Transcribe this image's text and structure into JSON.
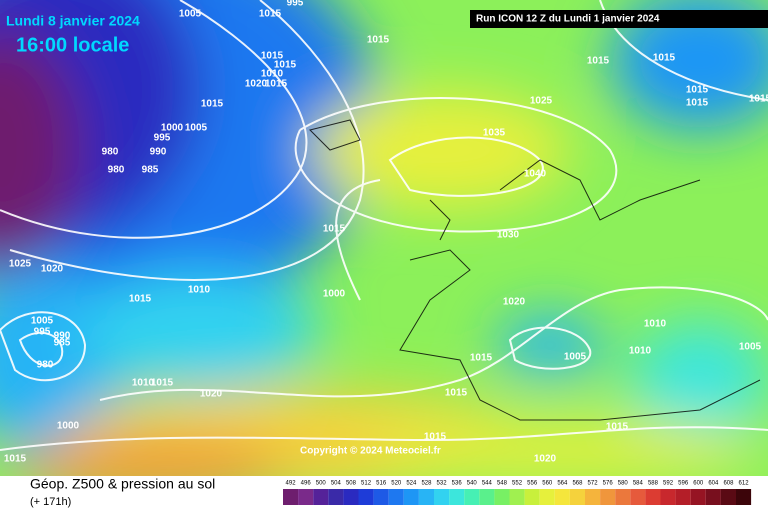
{
  "header": {
    "date": "Lundi 8 janvier 2024",
    "time": "16:00 locale",
    "run": "Run ICON 12 Z du Lundi 1 janvier 2024"
  },
  "isobar_labels": [
    1005,
    1015,
    995,
    1015,
    1015,
    1015,
    1010,
    1020,
    1015,
    1015,
    1000,
    1005,
    995,
    990,
    980,
    980,
    985,
    1015,
    1015,
    1025,
    1035,
    1040,
    1030,
    1015,
    1015,
    1015,
    1015,
    1025,
    1020,
    1015,
    1010,
    1000,
    1020,
    1005,
    995,
    990,
    985,
    980,
    1015,
    1005,
    1010,
    1010,
    1005,
    1010,
    1015,
    1020,
    1015,
    1000,
    1015,
    1015,
    1015,
    1020
  ],
  "copyright": "Copyright © 2024 Meteociel.fr",
  "footer": {
    "title": "Géop. Z500 & pression au sol",
    "lead": "(+ 171h)"
  },
  "scale": {
    "values": [
      492,
      496,
      500,
      504,
      508,
      512,
      516,
      520,
      524,
      528,
      532,
      536,
      540,
      544,
      548,
      552,
      556,
      560,
      564,
      568,
      572,
      576,
      580,
      584,
      588,
      592,
      596,
      600,
      604,
      608,
      612
    ],
    "colors": [
      "#6e1e6e",
      "#7a2a8a",
      "#552299",
      "#3a2aa8",
      "#2a2ac0",
      "#1e3cd8",
      "#1e5ae6",
      "#1e78f0",
      "#1e96f5",
      "#28b4f5",
      "#32d2f0",
      "#3ce6dc",
      "#46f0b4",
      "#5af08c",
      "#78f064",
      "#a0f050",
      "#c8f03c",
      "#e6f03c",
      "#f5e63c",
      "#f5d23c",
      "#f5b43c",
      "#f0963c",
      "#eb783c",
      "#e65a3c",
      "#dc3c32",
      "#c8282d",
      "#b41e28",
      "#961423",
      "#780f1e",
      "#5a0a14",
      "#3c050a"
    ]
  }
}
